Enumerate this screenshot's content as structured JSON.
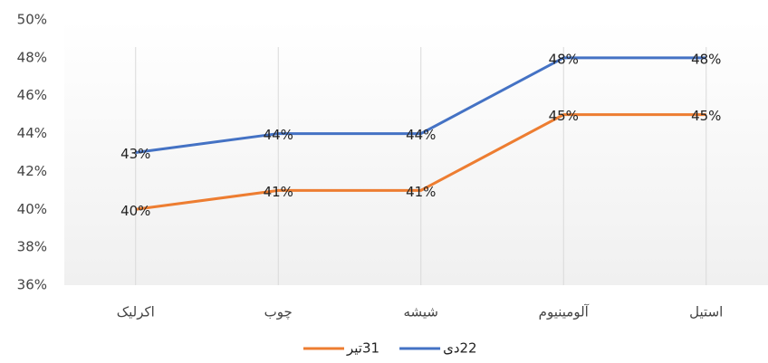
{
  "chart_data": {
    "type": "line",
    "categories": [
      "اکرلیک",
      "چوب",
      "شیشه",
      "آلومینیوم",
      "استیل"
    ],
    "series": [
      {
        "name": "31تیر",
        "color": "#ed7d31",
        "values": [
          40,
          41,
          41,
          45,
          45
        ],
        "value_labels": [
          "40%",
          "41%",
          "41%",
          "45%",
          "45%"
        ]
      },
      {
        "name": "22دی",
        "color": "#4472c4",
        "values": [
          43,
          44,
          44,
          48,
          48
        ],
        "value_labels": [
          "43%",
          "44%",
          "44%",
          "48%",
          "48%"
        ]
      }
    ],
    "ylim": [
      36,
      50
    ],
    "yticks": [
      {
        "value": 36,
        "label": "36%"
      },
      {
        "value": 38,
        "label": "38%"
      },
      {
        "value": 40,
        "label": "40%"
      },
      {
        "value": 42,
        "label": "42%"
      },
      {
        "value": 44,
        "label": "44%"
      },
      {
        "value": 46,
        "label": "46%"
      },
      {
        "value": 48,
        "label": "48%"
      },
      {
        "value": 50,
        "label": "50%"
      }
    ],
    "grid": true,
    "legend": "bottom"
  }
}
